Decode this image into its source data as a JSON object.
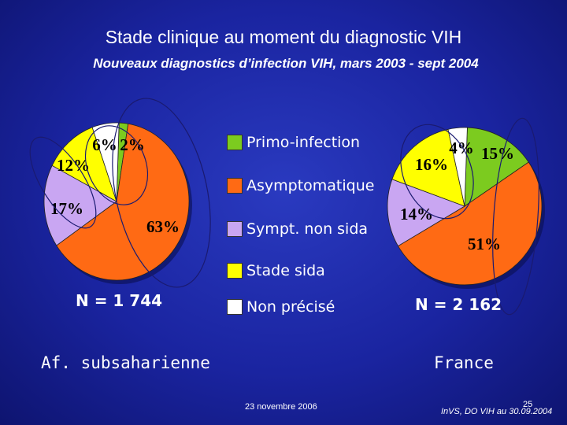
{
  "slide": {
    "title": "Stade clinique au moment du diagnostic VIH",
    "subtitle": "Nouveaux diagnostics d’infection VIH, mars 2003 - sept 2004",
    "footer_date": "23 novembre 2006",
    "page_number": "25",
    "source": "InVS, DO VIH au 30.09.2004"
  },
  "colors": {
    "Primo-infection": "#7ccb1f",
    "Asymptomatique": "#ff6a14",
    "Sympt. non sida": "#c9a6f2",
    "Stade sida": "#ffff00",
    "Non précisé": "#ffffff"
  },
  "legend": [
    "Primo-infection",
    "Asymptomatique",
    "Sympt. non sida",
    "Stade sida",
    "Non précisé"
  ],
  "chart_data": [
    {
      "type": "pie",
      "caption": "Af. subsaharienne",
      "n_label": "N = 1 744",
      "slices": [
        {
          "category": "Primo-infection",
          "value": 2,
          "label": "2%"
        },
        {
          "category": "Asymptomatique",
          "value": 63,
          "label": "63%"
        },
        {
          "category": "Sympt. non sida",
          "value": 17,
          "label": "17%"
        },
        {
          "category": "Stade sida",
          "value": 12,
          "label": "12%"
        },
        {
          "category": "Non précisé",
          "value": 6,
          "label": "6%"
        }
      ]
    },
    {
      "type": "pie",
      "caption": "France",
      "n_label": "N = 2 162",
      "slices": [
        {
          "category": "Primo-infection",
          "value": 15,
          "label": "15%"
        },
        {
          "category": "Asymptomatique",
          "value": 51,
          "label": "51%"
        },
        {
          "category": "Sympt. non sida",
          "value": 14,
          "label": "14%"
        },
        {
          "category": "Stade sida",
          "value": 16,
          "label": "16%"
        },
        {
          "category": "Non précisé",
          "value": 4,
          "label": "4%"
        }
      ]
    }
  ]
}
